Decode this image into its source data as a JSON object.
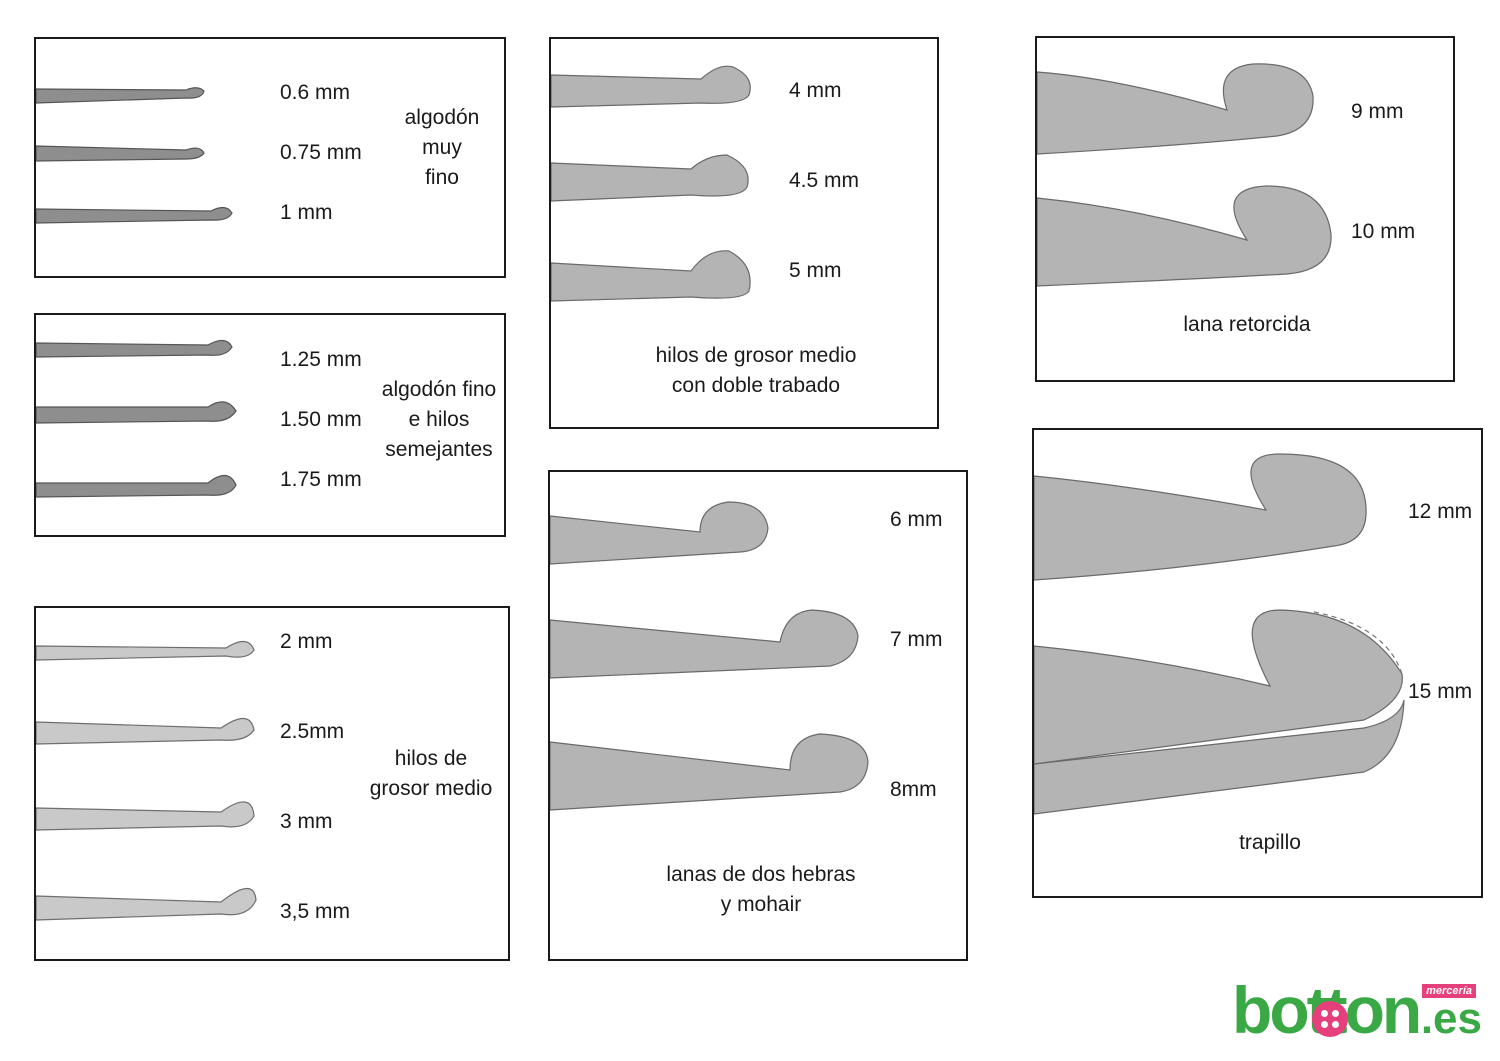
{
  "panels": [
    {
      "labels": [
        "0.6 mm",
        "0.75 mm",
        "1 mm"
      ],
      "caption": [
        "algodón",
        "muy",
        "fino"
      ]
    },
    {
      "labels": [
        "1.25 mm",
        "1.50 mm",
        "1.75 mm"
      ],
      "caption": [
        "algodón fino",
        "e hilos",
        "semejantes"
      ]
    },
    {
      "labels": [
        "2 mm",
        "2.5mm",
        "3 mm",
        "3,5 mm"
      ],
      "caption": [
        "hilos de",
        "grosor medio"
      ]
    },
    {
      "labels": [
        "4 mm",
        "4.5 mm",
        "5 mm"
      ],
      "caption": [
        "hilos de grosor medio",
        "con doble trabado"
      ]
    },
    {
      "labels": [
        "6 mm",
        "7 mm",
        "8mm"
      ],
      "caption": [
        "lanas de dos hebras",
        "y mohair"
      ]
    },
    {
      "labels": [
        "9 mm",
        "10 mm"
      ],
      "caption": [
        "lana retorcida"
      ]
    },
    {
      "labels": [
        "12 mm",
        "15 mm"
      ],
      "caption": [
        "trapillo"
      ]
    }
  ],
  "logo": {
    "main": "botton",
    "suffix": ".es",
    "tag": "mercería"
  },
  "colors": {
    "hook_fill": "#b4b4b4",
    "border": "#1a1a1a",
    "logo_green": "#3aa845",
    "logo_pink": "#e5407c"
  }
}
